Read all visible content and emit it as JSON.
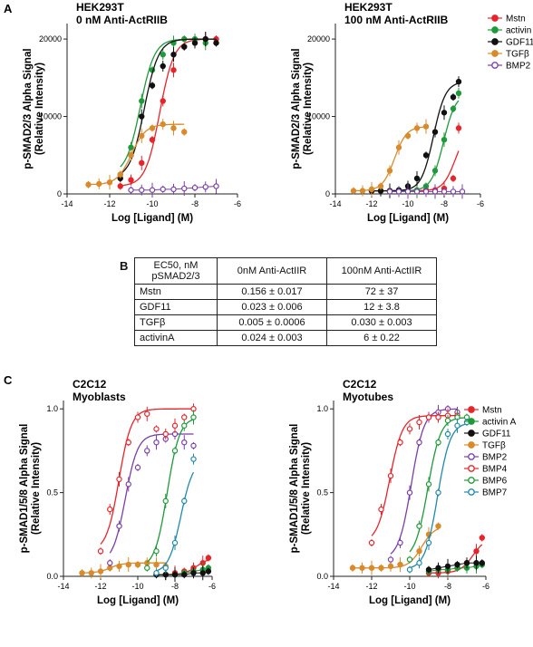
{
  "panels": {
    "A": "A",
    "B": "B",
    "C": "C"
  },
  "chart_data": [
    {
      "type": "scatter",
      "title": "HEK293T",
      "subtitle": "0 nM Anti-ActRIIB",
      "xlabel": "Log [Ligand] (M)",
      "ylabel": "p-SMAD2/3 Alpha Signal (Relative Intensity)",
      "xlim": [
        -14,
        -6
      ],
      "ylim": [
        0,
        22000
      ],
      "xticks": [
        -14,
        -12,
        -10,
        -8,
        -6
      ],
      "yticks": [
        0,
        10000,
        20000
      ],
      "series": [
        {
          "name": "Mstn",
          "color": "#e8242b",
          "x": [
            -11.5,
            -11,
            -10.5,
            -10,
            -9.5,
            -9,
            -8.5,
            -8,
            -7.5,
            -7
          ],
          "y": [
            1000,
            1800,
            4000,
            7000,
            12000,
            16000,
            19000,
            19500,
            20000,
            20000
          ],
          "fit": true
        },
        {
          "name": "activin A",
          "color": "#1f9a3b",
          "x": [
            -11.5,
            -11,
            -10.5,
            -10,
            -9.5,
            -9,
            -8.5,
            -8,
            -7.5,
            -7
          ],
          "y": [
            2500,
            6000,
            12000,
            16000,
            18000,
            19500,
            20000,
            20000,
            19500,
            19500
          ],
          "fit": true
        },
        {
          "name": "GDF11",
          "color": "#111111",
          "x": [
            -11.5,
            -11,
            -10.5,
            -10,
            -9.5,
            -9,
            -8.5,
            -8,
            -7.5,
            -7
          ],
          "y": [
            2000,
            5000,
            10000,
            14000,
            16500,
            18000,
            19000,
            19500,
            20000,
            19500
          ],
          "fit": true
        },
        {
          "name": "TGFβ",
          "color": "#d98a2b",
          "x": [
            -13,
            -12.5,
            -12,
            -11.5,
            -11,
            -10.5,
            -10,
            -9.5,
            -9,
            -8.5
          ],
          "y": [
            1200,
            1300,
            1500,
            2500,
            5000,
            7500,
            8500,
            9000,
            8500,
            8000
          ],
          "fit": true
        },
        {
          "name": "BMP2",
          "color": "#7b3fa8",
          "open": true,
          "x": [
            -11,
            -10.5,
            -10,
            -9.5,
            -9,
            -8.5,
            -8,
            -7.5,
            -7
          ],
          "y": [
            500,
            500,
            500,
            600,
            600,
            700,
            800,
            900,
            1000
          ],
          "fit": false
        }
      ]
    },
    {
      "type": "scatter",
      "title": "HEK293T",
      "subtitle": "100 nM Anti-ActRIIB",
      "xlabel": "Log [Ligand] (M)",
      "ylabel": "p-SMAD2/3 Alpha Signal (Relative Intensity)",
      "xlim": [
        -14,
        -6
      ],
      "ylim": [
        0,
        22000
      ],
      "xticks": [
        -14,
        -12,
        -10,
        -8,
        -6
      ],
      "yticks": [
        0,
        10000,
        20000
      ],
      "legend": [
        "Mstn",
        "activin A",
        "GDF11",
        "TGFβ",
        "BMP2"
      ],
      "series": [
        {
          "name": "Mstn",
          "color": "#e8242b",
          "x": [
            -12,
            -11.5,
            -11,
            -10.5,
            -10,
            -9.5,
            -9,
            -8.5,
            -8,
            -7.5,
            -7.2
          ],
          "y": [
            400,
            400,
            400,
            400,
            400,
            400,
            500,
            500,
            700,
            2000,
            8500
          ],
          "fit": true
        },
        {
          "name": "activin A",
          "color": "#1f9a3b",
          "x": [
            -12,
            -11.5,
            -11,
            -10.5,
            -10,
            -9.5,
            -9,
            -8.5,
            -8,
            -7.5,
            -7.2
          ],
          "y": [
            400,
            400,
            400,
            400,
            400,
            500,
            1000,
            3000,
            7000,
            11000,
            13000
          ],
          "fit": true
        },
        {
          "name": "GDF11",
          "color": "#111111",
          "x": [
            -12,
            -11.5,
            -11,
            -10.5,
            -10,
            -9.5,
            -9,
            -8.5,
            -8,
            -7.5,
            -7.2
          ],
          "y": [
            400,
            400,
            400,
            500,
            1000,
            2000,
            5000,
            8000,
            10500,
            12500,
            14500
          ],
          "fit": true
        },
        {
          "name": "TGFβ",
          "color": "#d98a2b",
          "x": [
            -13,
            -12.5,
            -12,
            -11.5,
            -11,
            -10.5,
            -10,
            -9.5,
            -9
          ],
          "y": [
            400,
            400,
            600,
            1000,
            3000,
            6000,
            7500,
            8500,
            8700
          ],
          "fit": true
        },
        {
          "name": "BMP2",
          "color": "#7b3fa8",
          "open": true,
          "x": [
            -11,
            -10.5,
            -10,
            -9.5,
            -9,
            -8.5,
            -8,
            -7.5,
            -7
          ],
          "y": [
            300,
            300,
            300,
            300,
            300,
            300,
            300,
            300,
            300
          ],
          "fit": false
        }
      ]
    },
    {
      "type": "table",
      "columns": [
        "EC50, nM pSMAD2/3",
        "0nM  Anti-ActIIR",
        "100nM Anti-ActIIR"
      ],
      "rows": [
        [
          "Mstn",
          "0.156 ± 0.017",
          "72 ± 37"
        ],
        [
          "GDF11",
          "0.023 ± 0.006",
          "12 ± 3.8"
        ],
        [
          "TGFβ",
          "0.005 ± 0.0006",
          "0.030 ± 0.003"
        ],
        [
          "activinA",
          "0.024 ± 0.003",
          "6 ± 0.22"
        ]
      ]
    },
    {
      "type": "scatter",
      "title": "C2C12",
      "subtitle": "Myoblasts",
      "xlabel": "Log [Ligand] (M)",
      "ylabel": "p-SMAD1/5/8 Alpha Signal (Relative Intensity)",
      "xlim": [
        -14,
        -6
      ],
      "ylim": [
        0,
        1.05
      ],
      "xticks": [
        -14,
        -12,
        -10,
        -8,
        -6
      ],
      "yticks": [
        0.0,
        0.5,
        1.0
      ],
      "series": [
        {
          "name": "Mstn",
          "color": "#e8242b",
          "x": [
            -9,
            -8.5,
            -8,
            -7.5,
            -7,
            -6.5,
            -6.2
          ],
          "y": [
            0.01,
            0.01,
            0.02,
            0.03,
            0.05,
            0.08,
            0.11
          ],
          "fit": true
        },
        {
          "name": "activin A",
          "color": "#1f9a3b",
          "x": [
            -9,
            -8.5,
            -8,
            -7.5,
            -7,
            -6.5,
            -6.2
          ],
          "y": [
            0.01,
            0.01,
            0.01,
            0.02,
            0.03,
            0.04,
            0.05
          ],
          "fit": false
        },
        {
          "name": "GDF11",
          "color": "#111111",
          "x": [
            -9,
            -8.5,
            -8,
            -7.5,
            -7,
            -6.5,
            -6.2
          ],
          "y": [
            0.01,
            0.01,
            0.01,
            0.01,
            0.02,
            0.02,
            0.03
          ],
          "fit": false
        },
        {
          "name": "TGFβ",
          "color": "#d98a2b",
          "x": [
            -13,
            -12.5,
            -12,
            -11.5,
            -11,
            -10.5,
            -10,
            -9.5,
            -9,
            -8.5
          ],
          "y": [
            0.02,
            0.02,
            0.03,
            0.05,
            0.06,
            0.07,
            0.07,
            0.08,
            0.07,
            0.06
          ],
          "fit": true
        },
        {
          "name": "BMP2",
          "color": "#7b3fa8",
          "open": true,
          "x": [
            -11.5,
            -11,
            -10.5,
            -10,
            -9.5,
            -9,
            -8.5,
            -8,
            -7.5,
            -7
          ],
          "y": [
            0.08,
            0.3,
            0.55,
            0.65,
            0.75,
            0.8,
            0.82,
            0.85,
            0.8,
            0.78
          ],
          "fit": true
        },
        {
          "name": "BMP4",
          "color": "#e8242b",
          "open": true,
          "x": [
            -12,
            -11.5,
            -11,
            -10.5,
            -10,
            -9.5,
            -9,
            -8.5,
            -8,
            -7.5,
            -7
          ],
          "y": [
            0.15,
            0.4,
            0.58,
            0.8,
            0.95,
            0.97,
            0.88,
            0.85,
            0.9,
            0.95,
            1.0
          ],
          "fit": true
        },
        {
          "name": "BMP6",
          "color": "#1f9a3b",
          "open": true,
          "x": [
            -9.5,
            -9,
            -8.5,
            -8,
            -7.5,
            -7
          ],
          "y": [
            0.05,
            0.15,
            0.45,
            0.75,
            0.9,
            0.95
          ],
          "fit": true
        },
        {
          "name": "BMP7",
          "color": "#1f8aa8",
          "open": true,
          "x": [
            -9,
            -8.5,
            -8,
            -7.5,
            -7
          ],
          "y": [
            0.02,
            0.05,
            0.2,
            0.45,
            0.7
          ],
          "fit": true
        }
      ]
    },
    {
      "type": "scatter",
      "title": "C2C12",
      "subtitle": "Myotubes",
      "xlabel": "Log [Ligand] (M)",
      "ylabel": "p-SMAD1/5/8 Alpha Signal (Relative Intensity)",
      "xlim": [
        -14,
        -6
      ],
      "ylim": [
        0,
        1.05
      ],
      "xticks": [
        -14,
        -12,
        -10,
        -8,
        -6
      ],
      "yticks": [
        0.0,
        0.5,
        1.0
      ],
      "legend": [
        "Mstn",
        "activin A",
        "GDF11",
        "TGFβ",
        "BMP2",
        "BMP4",
        "BMP6",
        "BMP7"
      ],
      "series": [
        {
          "name": "Mstn",
          "color": "#e8242b",
          "x": [
            -9,
            -8.5,
            -8,
            -7.5,
            -7,
            -6.5,
            -6.2
          ],
          "y": [
            0.02,
            0.02,
            0.03,
            0.05,
            0.08,
            0.15,
            0.23
          ],
          "fit": true
        },
        {
          "name": "activin A",
          "color": "#1f9a3b",
          "x": [
            -9,
            -8.5,
            -8,
            -7.5,
            -7,
            -6.5,
            -6.2
          ],
          "y": [
            0.03,
            0.04,
            0.04,
            0.05,
            0.05,
            0.06,
            0.07
          ],
          "fit": false
        },
        {
          "name": "GDF11",
          "color": "#111111",
          "x": [
            -9,
            -8.5,
            -8,
            -7.5,
            -7,
            -6.5,
            -6.2
          ],
          "y": [
            0.04,
            0.05,
            0.06,
            0.07,
            0.08,
            0.08,
            0.08
          ],
          "fit": false
        },
        {
          "name": "TGFβ",
          "color": "#d98a2b",
          "x": [
            -13,
            -12.5,
            -12,
            -11.5,
            -11,
            -10.5,
            -10,
            -9.5,
            -9,
            -8.5
          ],
          "y": [
            0.05,
            0.05,
            0.05,
            0.05,
            0.06,
            0.07,
            0.1,
            0.15,
            0.25,
            0.3
          ],
          "fit": true
        },
        {
          "name": "BMP2",
          "color": "#7b3fa8",
          "open": true,
          "x": [
            -11,
            -10.5,
            -10,
            -9.5,
            -9,
            -8.5,
            -8,
            -7.5
          ],
          "y": [
            0.1,
            0.2,
            0.5,
            0.8,
            0.95,
            0.98,
            1.0,
            0.98
          ],
          "fit": true
        },
        {
          "name": "BMP4",
          "color": "#e8242b",
          "open": true,
          "x": [
            -12,
            -11.5,
            -11,
            -10.5,
            -10,
            -9.5,
            -9,
            -8.5,
            -8,
            -7.5
          ],
          "y": [
            0.2,
            0.4,
            0.6,
            0.8,
            0.88,
            0.92,
            0.95,
            0.95,
            0.96,
            0.96
          ],
          "fit": true
        },
        {
          "name": "BMP6",
          "color": "#1f9a3b",
          "open": true,
          "x": [
            -10,
            -9.5,
            -9,
            -8.5,
            -8,
            -7.5,
            -7
          ],
          "y": [
            0.1,
            0.3,
            0.55,
            0.8,
            0.93,
            0.95,
            0.95
          ],
          "fit": true
        },
        {
          "name": "BMP7",
          "color": "#1f8aa8",
          "open": true,
          "x": [
            -10,
            -9.5,
            -9,
            -8.5,
            -8,
            -7.5,
            -7
          ],
          "y": [
            0.04,
            0.08,
            0.2,
            0.5,
            0.85,
            0.9,
            0.92
          ],
          "fit": true
        }
      ]
    }
  ]
}
